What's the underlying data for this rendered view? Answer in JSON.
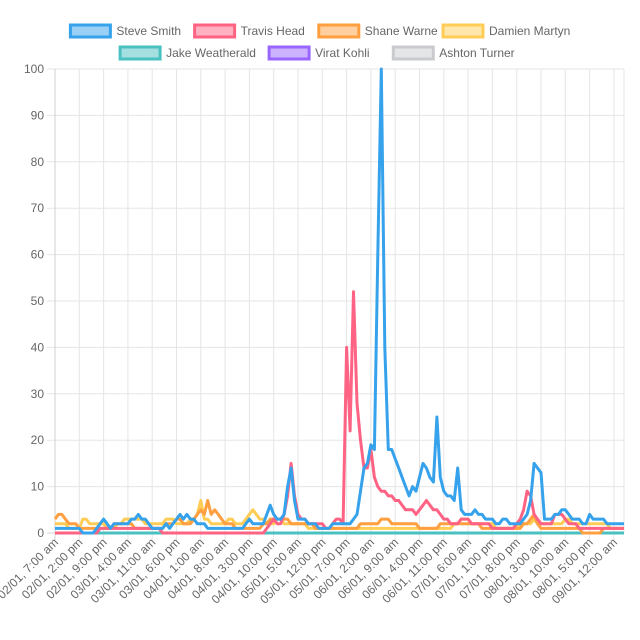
{
  "chart_data": {
    "type": "line",
    "title": "",
    "xlabel": "",
    "ylabel": "",
    "ylim": [
      0,
      100
    ],
    "y_ticks": [
      0,
      10,
      20,
      30,
      40,
      50,
      60,
      70,
      80,
      90,
      100
    ],
    "grid": true,
    "legend_position": "top",
    "x_tick_labels": [
      "02/01, 7:00 am",
      "02/01, 2:00 pm",
      "02/01, 9:00 pm",
      "03/01, 4:00 am",
      "03/01, 11:00 am",
      "03/01, 6:00 pm",
      "04/01, 1:00 am",
      "04/01, 8:00 am",
      "04/01, 3:00 pm",
      "04/01, 10:00 pm",
      "05/01, 5:00 am",
      "05/01, 12:00 pm",
      "05/01, 7:00 pm",
      "06/01, 2:00 am",
      "06/01, 9:00 am",
      "06/01, 4:00 pm",
      "06/01, 11:00 pm",
      "07/01, 6:00 am",
      "07/01, 1:00 pm",
      "07/01, 8:00 pm",
      "08/01, 3:00 am",
      "08/01, 10:00 am",
      "08/01, 5:00 pm",
      "09/01, 12:00 am"
    ],
    "points_per_tick": 7,
    "series": [
      {
        "name": "Steve Smith",
        "color": "#36a2eb",
        "fill": "#9ad0f5",
        "values": [
          1,
          1,
          1,
          1,
          1,
          1,
          1,
          1,
          0,
          0,
          0,
          0,
          1,
          2,
          3,
          2,
          1,
          2,
          2,
          2,
          2,
          2,
          3,
          3,
          4,
          3,
          3,
          2,
          1,
          1,
          1,
          1,
          2,
          1,
          2,
          3,
          4,
          3,
          4,
          3,
          3,
          2,
          2,
          2,
          1,
          1,
          1,
          1,
          1,
          1,
          1,
          1,
          1,
          1,
          1,
          2,
          3,
          2,
          2,
          2,
          2,
          4,
          6,
          4,
          3,
          3,
          4,
          10,
          14,
          7,
          3,
          3,
          3,
          2,
          2,
          2,
          1,
          1,
          1,
          1,
          2,
          2,
          2,
          2,
          2,
          2,
          3,
          4,
          9,
          14,
          15,
          19,
          18,
          60,
          100,
          40,
          18,
          18,
          16,
          14,
          12,
          10,
          8,
          10,
          9,
          12,
          15,
          14,
          12,
          11,
          25,
          12,
          9,
          8,
          8,
          7,
          14,
          5,
          4,
          4,
          4,
          5,
          4,
          4,
          3,
          3,
          3,
          2,
          2,
          3,
          3,
          2,
          2,
          2,
          2,
          3,
          4,
          7,
          15,
          14,
          13,
          3,
          3,
          3,
          4,
          4,
          5,
          5,
          4,
          3,
          3,
          3,
          2,
          2,
          4,
          3,
          3,
          3,
          3,
          2,
          2,
          2,
          2,
          2,
          2,
          2,
          2,
          2
        ]
      },
      {
        "name": "Travis Head",
        "color": "#ff6384",
        "fill": "#ffb1c1",
        "values": [
          0,
          0,
          0,
          0,
          0,
          0,
          0,
          0,
          0,
          0,
          0,
          0,
          0,
          1,
          1,
          1,
          1,
          1,
          1,
          1,
          1,
          1,
          1,
          1,
          1,
          1,
          1,
          1,
          1,
          1,
          1,
          0,
          0,
          0,
          0,
          0,
          0,
          0,
          0,
          0,
          0,
          0,
          0,
          0,
          0,
          0,
          0,
          0,
          0,
          0,
          0,
          0,
          0,
          0,
          0,
          0,
          0,
          0,
          0,
          0,
          0,
          1,
          2,
          3,
          2,
          2,
          4,
          8,
          15,
          8,
          4,
          3,
          3,
          2,
          2,
          2,
          2,
          2,
          1,
          1,
          2,
          3,
          3,
          2,
          40,
          22,
          52,
          28,
          20,
          14,
          14,
          18,
          12,
          10,
          9,
          9,
          8,
          8,
          7,
          7,
          6,
          5,
          5,
          5,
          4,
          5,
          6,
          7,
          6,
          5,
          5,
          4,
          3,
          3,
          2,
          2,
          2,
          3,
          3,
          3,
          2,
          2,
          2,
          2,
          2,
          2,
          1,
          1,
          1,
          1,
          1,
          1,
          1,
          2,
          3,
          5,
          9,
          8,
          4,
          3,
          2,
          2,
          2,
          2,
          4,
          4,
          4,
          3,
          2,
          2,
          2,
          1,
          1,
          1,
          1,
          1,
          1,
          1,
          1,
          1,
          1,
          1,
          1,
          1,
          1,
          1,
          1,
          1,
          1
        ]
      },
      {
        "name": "Shane Warne",
        "color": "#ff9f40",
        "fill": "#ffcf9f",
        "values": [
          3,
          4,
          4,
          3,
          2,
          2,
          2,
          1,
          1,
          1,
          1,
          1,
          1,
          1,
          1,
          1,
          1,
          2,
          2,
          2,
          2,
          2,
          2,
          1,
          1,
          1,
          1,
          1,
          1,
          1,
          1,
          1,
          2,
          2,
          2,
          3,
          3,
          2,
          2,
          2,
          3,
          4,
          5,
          4,
          7,
          4,
          5,
          4,
          3,
          2,
          2,
          2,
          1,
          1,
          1,
          1,
          1,
          1,
          1,
          1,
          2,
          2,
          3,
          3,
          3,
          3,
          3,
          3,
          2,
          2,
          2,
          2,
          2,
          2,
          2,
          1,
          1,
          1,
          1,
          1,
          1,
          1,
          1,
          1,
          1,
          1,
          1,
          1,
          2,
          2,
          2,
          2,
          2,
          2,
          3,
          3,
          3,
          2,
          2,
          2,
          2,
          2,
          2,
          2,
          2,
          1,
          1,
          1,
          1,
          1,
          1,
          2,
          2,
          2,
          2,
          2,
          2,
          2,
          2,
          2,
          2,
          2,
          2,
          1,
          1,
          1,
          1,
          1,
          1,
          1,
          1,
          1,
          1,
          1,
          1,
          2,
          2,
          3,
          4,
          2,
          1,
          1,
          1,
          1,
          1,
          1,
          1,
          1,
          1,
          1,
          1,
          1,
          0,
          0,
          0,
          0,
          0,
          0,
          1,
          1,
          1,
          1,
          1,
          1,
          1,
          1,
          1,
          1,
          1
        ]
      },
      {
        "name": "Damien Martyn",
        "color": "#ffcd56",
        "fill": "#ffe6aa",
        "values": [
          2,
          2,
          2,
          2,
          1,
          1,
          1,
          1,
          3,
          3,
          2,
          2,
          2,
          2,
          2,
          1,
          1,
          1,
          2,
          2,
          3,
          3,
          3,
          3,
          3,
          3,
          2,
          2,
          2,
          2,
          2,
          2,
          3,
          3,
          3,
          2,
          2,
          2,
          2,
          3,
          3,
          4,
          7,
          3,
          3,
          2,
          2,
          2,
          2,
          2,
          3,
          3,
          2,
          2,
          2,
          3,
          4,
          5,
          4,
          3,
          3,
          2,
          2,
          2,
          3,
          3,
          2,
          2,
          2,
          2,
          2,
          2,
          2,
          1,
          1,
          1,
          1,
          1,
          1,
          1,
          1,
          1,
          1,
          1,
          1,
          1,
          1,
          1,
          1,
          1,
          1,
          1,
          1,
          1,
          1,
          1,
          1,
          1,
          1,
          1,
          1,
          1,
          1,
          1,
          1,
          1,
          1,
          1,
          1,
          1,
          1,
          1,
          1,
          1,
          1,
          2,
          2,
          3,
          3,
          3,
          2,
          2,
          2,
          2,
          2,
          2,
          2,
          1,
          1,
          1,
          1,
          1,
          1,
          1,
          2,
          2,
          2,
          2,
          3,
          2,
          2,
          2,
          2,
          2,
          2,
          2,
          2,
          3,
          3,
          2,
          2,
          2,
          2,
          2,
          2,
          2,
          2,
          2,
          2,
          2,
          1,
          1,
          1,
          1,
          1,
          1,
          1,
          1,
          1
        ]
      },
      {
        "name": "Jake Weatherald",
        "color": "#4bc0c0",
        "fill": "#a5dfdf",
        "values": [
          0,
          0,
          0,
          0,
          0,
          0,
          0,
          0,
          0,
          0,
          0,
          0,
          0,
          0,
          0,
          0,
          0,
          0,
          0,
          0,
          0,
          0,
          0,
          0,
          0,
          0,
          0,
          0,
          0,
          0,
          0,
          0,
          0,
          0,
          0,
          0,
          0,
          0,
          0,
          0,
          0,
          0,
          0,
          0,
          0,
          0,
          0,
          0,
          0,
          0,
          0,
          0,
          0,
          0,
          0,
          0,
          0,
          0,
          0,
          0,
          0,
          0,
          0,
          0,
          0,
          0,
          0,
          0,
          0,
          0,
          0,
          0,
          0,
          0,
          0,
          0,
          0,
          0,
          0,
          0,
          0,
          0,
          0,
          0,
          0,
          0,
          0,
          0,
          0,
          0,
          0,
          0,
          0,
          0,
          0,
          0,
          0,
          0,
          0,
          0,
          0,
          0,
          0,
          0,
          0,
          0,
          0,
          0,
          0,
          0,
          0,
          0,
          0,
          0,
          0,
          0,
          0,
          0,
          0,
          0,
          0,
          0,
          0,
          0,
          0,
          0,
          0,
          0,
          0,
          0,
          0,
          0,
          0,
          0,
          0,
          0,
          0,
          0,
          0,
          0,
          0,
          0,
          0,
          0,
          0,
          0,
          0,
          0,
          0,
          0,
          0,
          0,
          0,
          0,
          0,
          0,
          0,
          0,
          0,
          0,
          0,
          0,
          0,
          0,
          0,
          0,
          0,
          0,
          0
        ]
      },
      {
        "name": "Virat Kohli",
        "color": "#9966ff",
        "fill": "#ccb2ff",
        "values": [
          0,
          0,
          0,
          0,
          0,
          0,
          0,
          0,
          0,
          0,
          0,
          0,
          0,
          0,
          0,
          0,
          0,
          0,
          0,
          0,
          0,
          0,
          0,
          0,
          0,
          0,
          0,
          0,
          0,
          0,
          0,
          0,
          0,
          0,
          0,
          0,
          0,
          0,
          0,
          0,
          0,
          0,
          0,
          0,
          0,
          0,
          0,
          0,
          0,
          0,
          0,
          0,
          0,
          0,
          0,
          0,
          0,
          0,
          0,
          0,
          0,
          0,
          0,
          0,
          0,
          0,
          0,
          0,
          0,
          0,
          0,
          0,
          0,
          0,
          0,
          0,
          0,
          0,
          0,
          0,
          0,
          0,
          0,
          0,
          0,
          0,
          0,
          0,
          0,
          0,
          0,
          0,
          0,
          0,
          0,
          0,
          0,
          0,
          0,
          0,
          0,
          0,
          0,
          0,
          0,
          0,
          0,
          0,
          0,
          0,
          0,
          0,
          0,
          0,
          0,
          0,
          0,
          0,
          0,
          0,
          0,
          0,
          0,
          0,
          0,
          0,
          0,
          0,
          0,
          0,
          0,
          0,
          0,
          0,
          0,
          0,
          0,
          0,
          0,
          0,
          0,
          0,
          0,
          0,
          0,
          0,
          0,
          0,
          0,
          0,
          0,
          0,
          0,
          0,
          0,
          0,
          0,
          0,
          0,
          0,
          0,
          0,
          0,
          0,
          0,
          0,
          0,
          0,
          0
        ]
      },
      {
        "name": "Ashton Turner",
        "color": "#c9cbcf",
        "fill": "#e4e5e7",
        "values": [
          0,
          0,
          0,
          0,
          0,
          0,
          0,
          0,
          0,
          0,
          0,
          0,
          0,
          0,
          0,
          0,
          0,
          0,
          0,
          0,
          0,
          0,
          0,
          0,
          0,
          0,
          0,
          0,
          0,
          0,
          0,
          0,
          0,
          0,
          0,
          0,
          0,
          0,
          0,
          0,
          0,
          0,
          0,
          0,
          0,
          0,
          0,
          0,
          0,
          0,
          0,
          0,
          0,
          0,
          0,
          0,
          0,
          0,
          0,
          0,
          0,
          0,
          0,
          0,
          0,
          0,
          0,
          0,
          0,
          0,
          0,
          0,
          0,
          0,
          0,
          0,
          0,
          0,
          0,
          0,
          0,
          0,
          0,
          0,
          0,
          0,
          0,
          0,
          0,
          0,
          0,
          0,
          0,
          0,
          0,
          0,
          0,
          0,
          0,
          0,
          0,
          0,
          0,
          0,
          0,
          0,
          0,
          0,
          0,
          0,
          0,
          0,
          0,
          0,
          0,
          0,
          0,
          0,
          0,
          0,
          0,
          0,
          0,
          0,
          0,
          0,
          0,
          0,
          0,
          0,
          0,
          0,
          0,
          0,
          0,
          0,
          0,
          0,
          0,
          0,
          0,
          0,
          0,
          0,
          0,
          0,
          0,
          0,
          0,
          0,
          0,
          0,
          0,
          0,
          0,
          0,
          0,
          0,
          0,
          0,
          0,
          0,
          0,
          0,
          0,
          0,
          0,
          0,
          0
        ]
      }
    ]
  }
}
